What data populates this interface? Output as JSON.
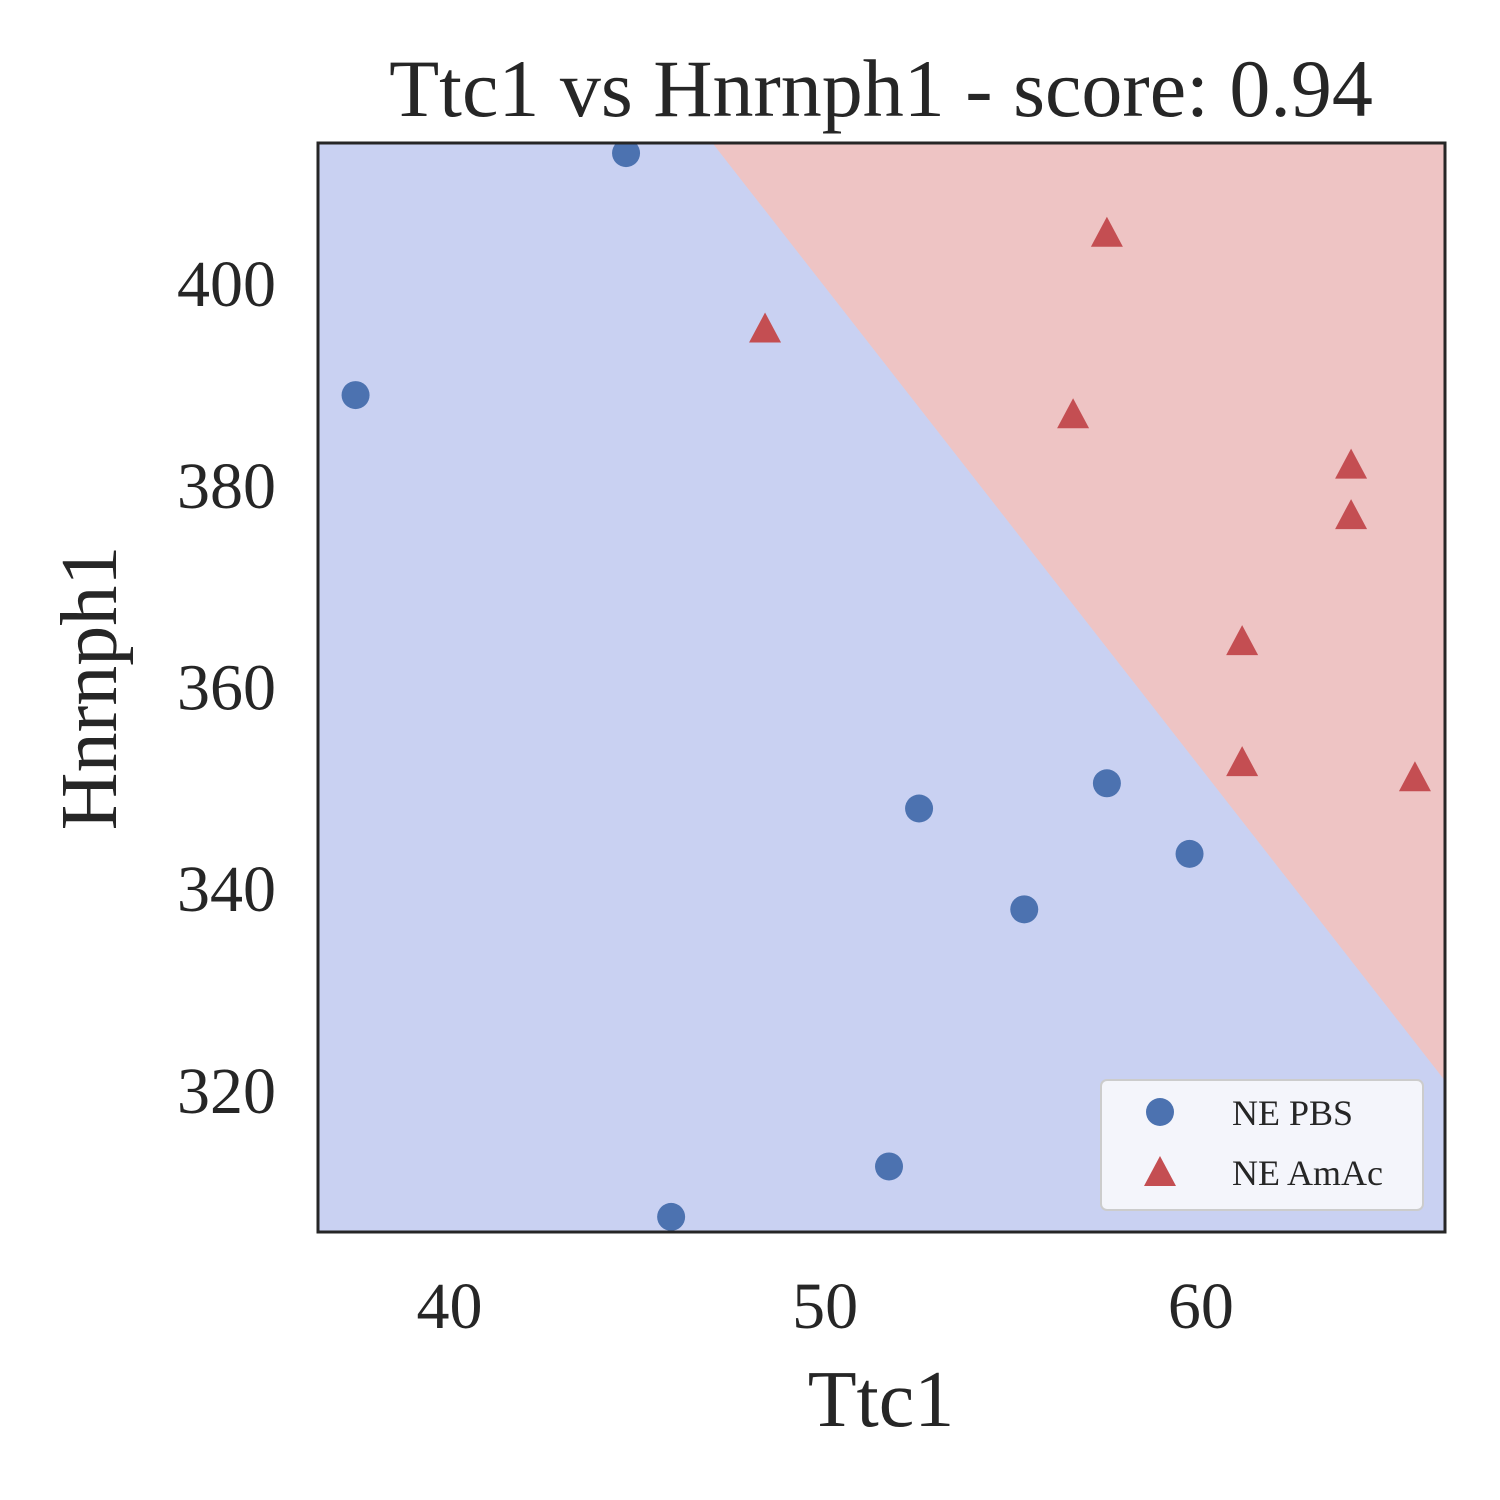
{
  "chart_data": {
    "type": "scatter",
    "title": "Ttc1 vs Hnrnph1 - score: 0.94",
    "xlabel": "Ttc1",
    "ylabel": "Hnrnph1",
    "xlim": [
      36.5,
      66.5
    ],
    "ylim": [
      306,
      414
    ],
    "xticks": [
      40,
      50,
      60
    ],
    "yticks": [
      320,
      340,
      360,
      380,
      400
    ],
    "grid": false,
    "legend_position": "bottom-right",
    "decision_regions": {
      "boundary_line": [
        [
          47.0,
          414
        ],
        [
          66.5,
          321
        ]
      ],
      "below_color": "#c9d1f2",
      "above_color": "#eec4c4"
    },
    "series": [
      {
        "name": "NE PBS",
        "marker": "circle",
        "color": "#4c72b0",
        "points": [
          [
            44.7,
            413
          ],
          [
            37.5,
            389
          ],
          [
            52.5,
            348
          ],
          [
            57.5,
            350.5
          ],
          [
            59.7,
            343.5
          ],
          [
            55.3,
            338
          ],
          [
            51.7,
            312.5
          ],
          [
            45.9,
            307.5
          ]
        ]
      },
      {
        "name": "NE AmAc",
        "marker": "triangle",
        "color": "#c44e52",
        "points": [
          [
            57.5,
            405
          ],
          [
            48.4,
            395.5
          ],
          [
            56.6,
            387
          ],
          [
            64.0,
            382
          ],
          [
            64.0,
            377
          ],
          [
            61.1,
            364.5
          ],
          [
            61.1,
            352.5
          ],
          [
            65.7,
            351
          ]
        ]
      }
    ]
  }
}
